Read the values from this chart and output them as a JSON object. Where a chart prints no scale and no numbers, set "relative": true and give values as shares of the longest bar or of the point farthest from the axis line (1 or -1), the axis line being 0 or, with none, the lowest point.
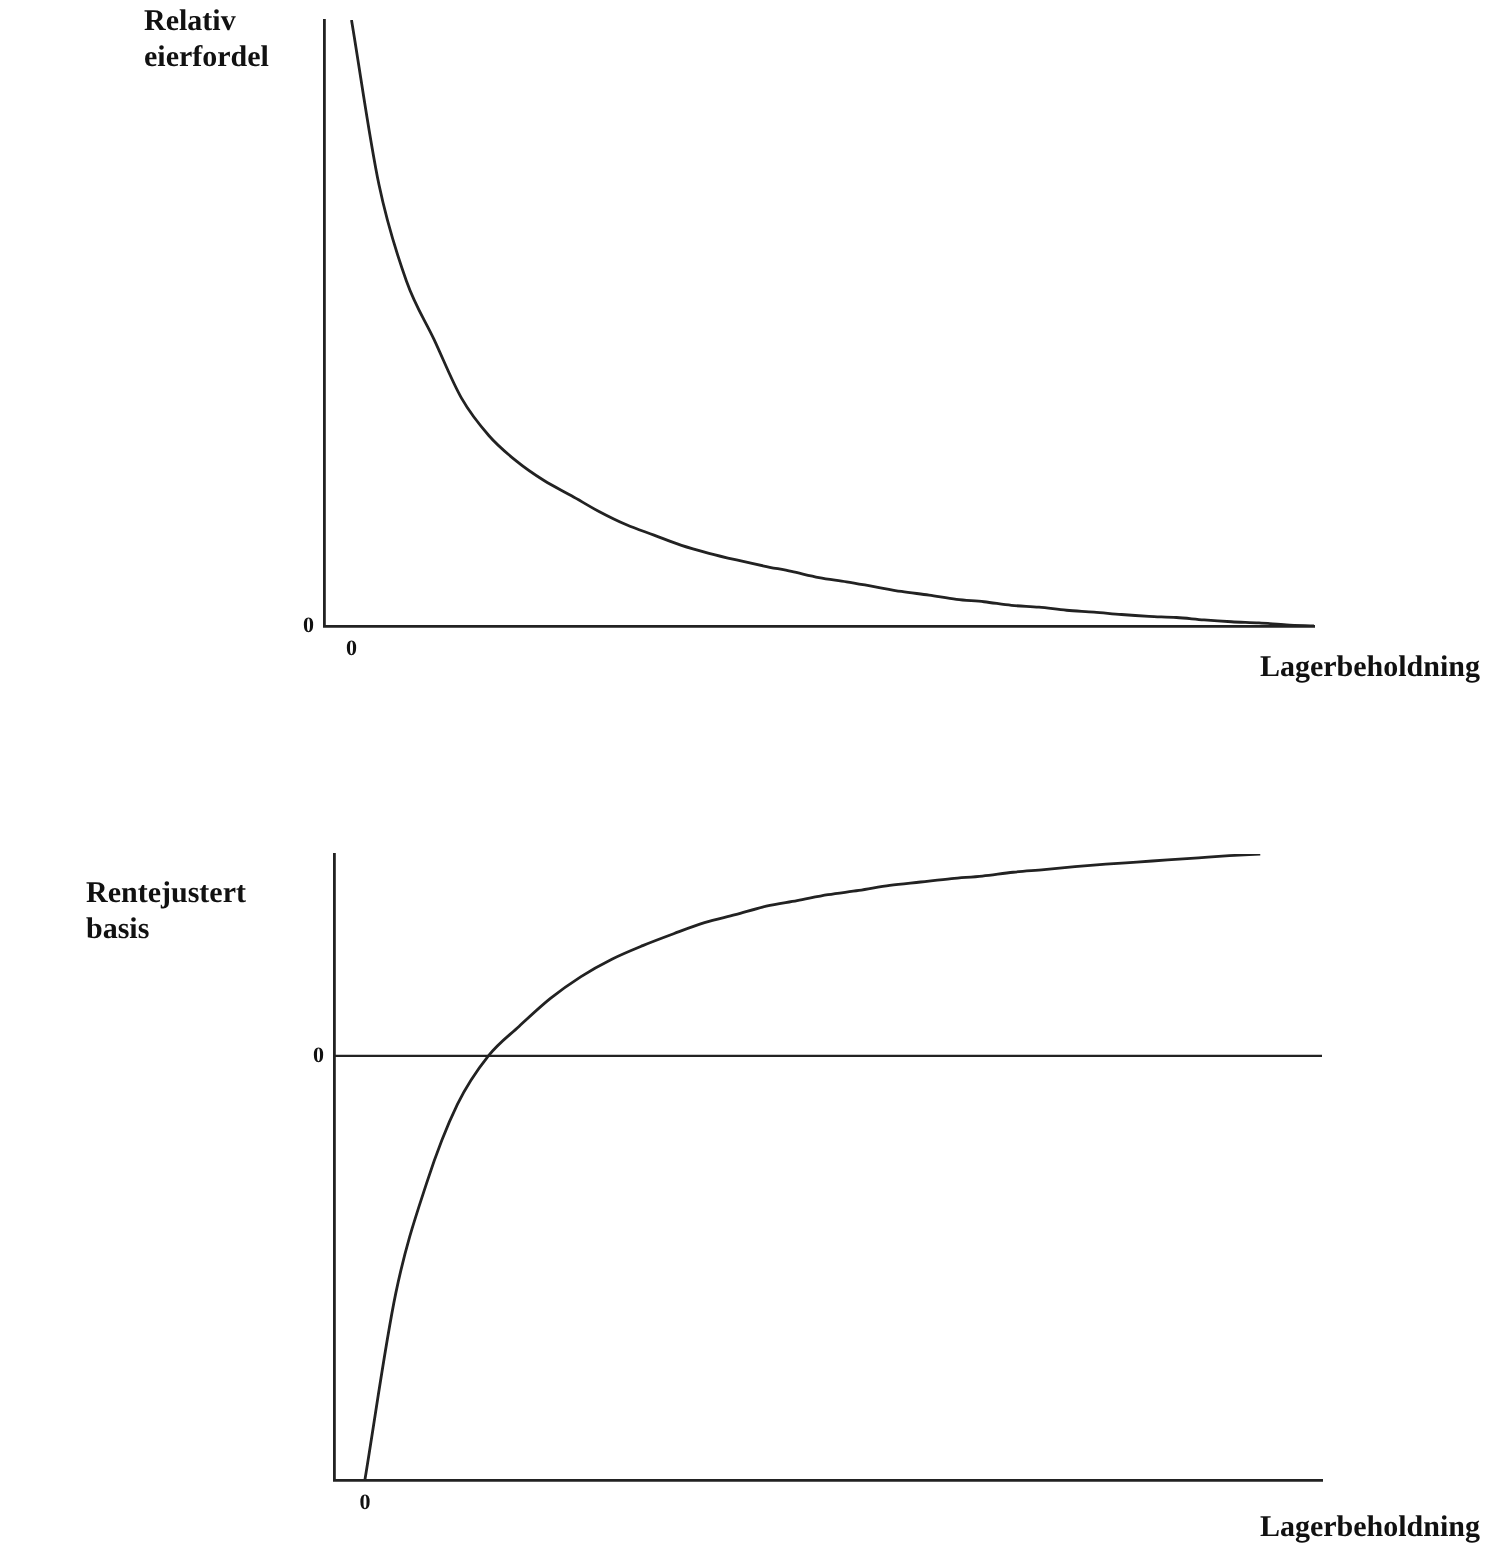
{
  "chart_data": [
    {
      "type": "line",
      "ylabel": "Relativ eierfordel",
      "xlabel": "Lagerbeholdning",
      "relative": true,
      "color": "#222222",
      "annotations": [
        "0",
        "0"
      ],
      "categories": [
        null,
        null,
        null,
        null,
        null,
        null,
        null,
        null,
        null,
        null,
        null,
        null,
        null,
        null,
        null,
        null,
        null,
        null,
        null,
        null,
        null,
        null,
        null,
        null,
        null,
        null,
        null,
        null,
        null,
        null,
        null,
        null,
        null,
        null,
        null,
        null,
        null
      ],
      "values": [
        null,
        1,
        0.728,
        0.569,
        0.473,
        0.376,
        0.314,
        0.272,
        0.24,
        0.215,
        0.189,
        0.167,
        0.15,
        0.133,
        0.12,
        0.109,
        0.099,
        0.09,
        0.08,
        0.073,
        0.065,
        0.057,
        0.051,
        0.044,
        0.04,
        0.034,
        0.031,
        0.026,
        0.023,
        0.019,
        0.016,
        0.014,
        0.01,
        0.007,
        0.005,
        0.002,
        0
      ]
    },
    {
      "type": "line",
      "ylabel": "Rentejustert basis",
      "xlabel": "Lagerbeholdning",
      "relative": true,
      "color": "#222222",
      "annotations": [
        "0",
        "0"
      ],
      "categories": [
        null,
        null,
        null,
        null,
        null,
        null,
        null,
        null,
        null,
        null,
        null,
        null,
        null,
        null,
        null,
        null,
        null,
        null,
        null,
        null,
        null,
        null,
        null,
        null,
        null,
        null,
        null,
        null,
        null,
        null,
        null,
        null,
        null
      ],
      "values": [
        null,
        -1,
        -0.56,
        -0.3,
        -0.114,
        0,
        0.07,
        0.135,
        0.187,
        0.228,
        0.26,
        0.288,
        0.314,
        0.333,
        0.353,
        0.366,
        0.38,
        0.39,
        0.402,
        0.41,
        0.418,
        0.424,
        0.433,
        0.439,
        0.446,
        0.452,
        0.457,
        0.462,
        0.467,
        0.472,
        0.476,
        null,
        null
      ]
    }
  ]
}
